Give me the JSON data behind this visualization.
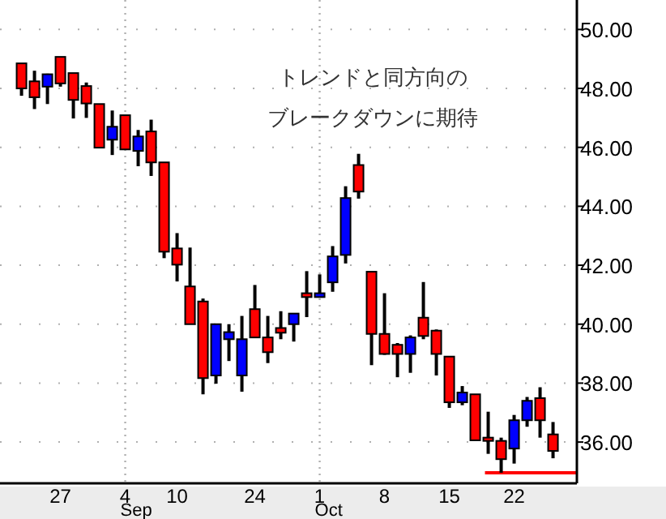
{
  "chart_data": {
    "type": "candlestick",
    "categories": [
      null,
      null,
      null,
      "27",
      null,
      null,
      null,
      null,
      "4",
      null,
      null,
      null,
      "10",
      null,
      null,
      null,
      null,
      null,
      "24",
      null,
      null,
      null,
      null,
      "1",
      null,
      null,
      null,
      null,
      "8",
      null,
      null,
      null,
      null,
      "15",
      null,
      null,
      null,
      null,
      "22",
      null,
      null,
      null
    ],
    "ohlc": [
      [
        48.85,
        48.85,
        47.75,
        48.0
      ],
      [
        48.24,
        48.6,
        47.3,
        47.7
      ],
      [
        48.06,
        48.5,
        47.47,
        48.48
      ],
      [
        49.07,
        49.07,
        48.06,
        48.17
      ],
      [
        48.52,
        48.52,
        46.98,
        47.61
      ],
      [
        48.08,
        48.2,
        47.0,
        47.49
      ],
      [
        47.47,
        47.47,
        45.99,
        45.99
      ],
      [
        46.26,
        47.25,
        45.74,
        46.7
      ],
      [
        47.09,
        47.09,
        45.93,
        45.93
      ],
      [
        45.88,
        46.59,
        45.36,
        46.37
      ],
      [
        46.54,
        46.94,
        45.03,
        45.49
      ],
      [
        45.49,
        45.49,
        42.24,
        42.46
      ],
      [
        42.57,
        43.09,
        41.45,
        42.02
      ],
      [
        41.28,
        42.6,
        40.0,
        40.0
      ],
      [
        40.77,
        40.87,
        37.62,
        38.17
      ],
      [
        38.26,
        40.0,
        37.98,
        40.0
      ],
      [
        39.49,
        40.0,
        38.75,
        39.73
      ],
      [
        38.26,
        40.28,
        37.71,
        39.49
      ],
      [
        40.51,
        41.33,
        39.55,
        39.55
      ],
      [
        39.55,
        40.28,
        38.68,
        39.05
      ],
      [
        39.87,
        40.44,
        39.49,
        39.71
      ],
      [
        40.0,
        40.36,
        39.41,
        40.36
      ],
      [
        41.05,
        41.8,
        40.24,
        40.92
      ],
      [
        40.92,
        41.69,
        40.9,
        41.05
      ],
      [
        41.42,
        42.65,
        41.1,
        42.3
      ],
      [
        42.35,
        44.68,
        42.06,
        44.28
      ],
      [
        45.4,
        45.78,
        44.26,
        44.5
      ],
      [
        41.78,
        41.78,
        38.61,
        39.67
      ],
      [
        39.67,
        41.05,
        38.96,
        38.99
      ],
      [
        39.3,
        39.36,
        38.2,
        38.99
      ],
      [
        38.99,
        39.62,
        38.35,
        39.55
      ],
      [
        40.22,
        41.43,
        39.49,
        39.6
      ],
      [
        39.78,
        39.82,
        38.26,
        38.99
      ],
      [
        38.9,
        38.9,
        37.16,
        37.35
      ],
      [
        37.35,
        37.9,
        37.25,
        37.68
      ],
      [
        37.62,
        37.62,
        36.06,
        36.06
      ],
      [
        36.15,
        37.03,
        35.6,
        36.04
      ],
      [
        36.04,
        36.15,
        34.96,
        35.42
      ],
      [
        35.78,
        36.92,
        35.27,
        36.74
      ],
      [
        36.74,
        37.53,
        36.52,
        37.4
      ],
      [
        37.49,
        37.86,
        36.15,
        36.74
      ],
      [
        36.26,
        36.68,
        35.45,
        35.7
      ]
    ],
    "colors": [
      "#ff0000",
      "#ff0000",
      "#0000ff",
      "#ff0000",
      "#ff0000",
      "#ff0000",
      "#ff0000",
      "#0000ff",
      "#ff0000",
      "#0000ff",
      "#ff0000",
      "#ff0000",
      "#ff0000",
      "#ff0000",
      "#ff0000",
      "#0000ff",
      "#0000ff",
      "#0000ff",
      "#ff0000",
      "#ff0000",
      "#ff0000",
      "#0000ff",
      "#ff0000",
      "#0000ff",
      "#0000ff",
      "#0000ff",
      "#ff0000",
      "#ff0000",
      "#ff0000",
      "#ff0000",
      "#0000ff",
      "#ff0000",
      "#ff0000",
      "#ff0000",
      "#0000ff",
      "#ff0000",
      "#ff0000",
      "#ff0000",
      "#0000ff",
      "#0000ff",
      "#ff0000",
      "#ff0000"
    ],
    "ylim": [
      34.6,
      51.0
    ],
    "yticks": [
      {
        "value": 36,
        "label": "36.00"
      },
      {
        "value": 38,
        "label": "38.00"
      },
      {
        "value": 40,
        "label": "40.00"
      },
      {
        "value": 42,
        "label": "42.00"
      },
      {
        "value": 44,
        "label": "44.00"
      },
      {
        "value": 46,
        "label": "46.00"
      },
      {
        "value": 48,
        "label": "48.00"
      },
      {
        "value": 50,
        "label": "50.00"
      }
    ],
    "grid": "y",
    "ref_lines": [
      {
        "axis": "x",
        "value": "4",
        "label": "Sep",
        "color": "#b0b0b0",
        "line_style": "dotted"
      },
      {
        "axis": "x",
        "value": "1",
        "label": "Oct",
        "color": "#b0b0b0",
        "line_style": "dotted"
      },
      {
        "axis": "y",
        "value": 34.96,
        "color": "#ff0000",
        "line_style": "solid"
      }
    ],
    "annotations": [
      "トレンドと同方向の",
      "ブレークダウンに期待"
    ]
  }
}
